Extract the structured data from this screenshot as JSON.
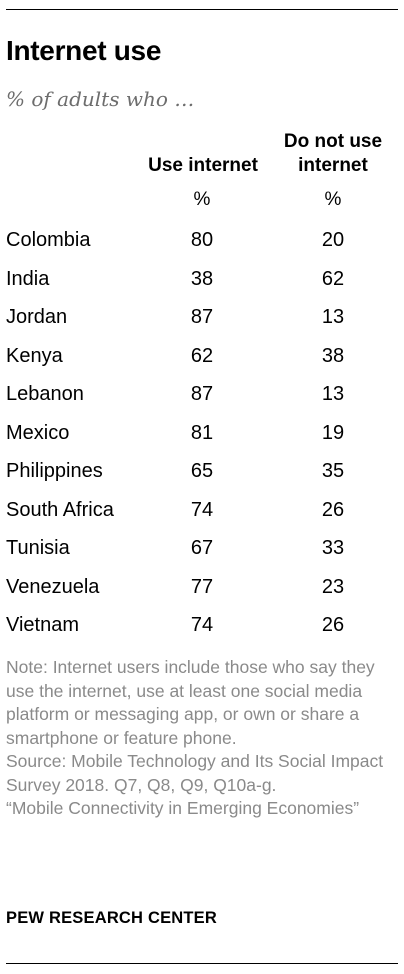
{
  "title": "Internet use",
  "subtitle": "% of adults who …",
  "columns": {
    "use": "Use internet",
    "not_use": "Do not use internet",
    "unit": "%"
  },
  "chart_data": {
    "type": "table",
    "title": "Internet use",
    "subtitle": "% of adults who …",
    "columns": [
      "Use internet",
      "Do not use internet"
    ],
    "unit": "%",
    "rows": [
      {
        "country": "Colombia",
        "use": 80,
        "not_use": 20
      },
      {
        "country": "India",
        "use": 38,
        "not_use": 62
      },
      {
        "country": "Jordan",
        "use": 87,
        "not_use": 13
      },
      {
        "country": "Kenya",
        "use": 62,
        "not_use": 38
      },
      {
        "country": "Lebanon",
        "use": 87,
        "not_use": 13
      },
      {
        "country": "Mexico",
        "use": 81,
        "not_use": 19
      },
      {
        "country": "Philippines",
        "use": 65,
        "not_use": 35
      },
      {
        "country": "South Africa",
        "use": 74,
        "not_use": 26
      },
      {
        "country": "Tunisia",
        "use": 67,
        "not_use": 33
      },
      {
        "country": "Venezuela",
        "use": 77,
        "not_use": 23
      },
      {
        "country": "Vietnam",
        "use": 74,
        "not_use": 26
      }
    ]
  },
  "note": "Note: Internet users include those who say they use the internet, use at least one social media platform or messaging app, or own or share a smartphone or feature phone.",
  "source": "Source: Mobile Technology and Its Social Impact Survey 2018. Q7, Q8, Q9, Q10a-g.",
  "report": "“Mobile Connectivity in Emerging Economies”",
  "footer": "PEW RESEARCH CENTER"
}
